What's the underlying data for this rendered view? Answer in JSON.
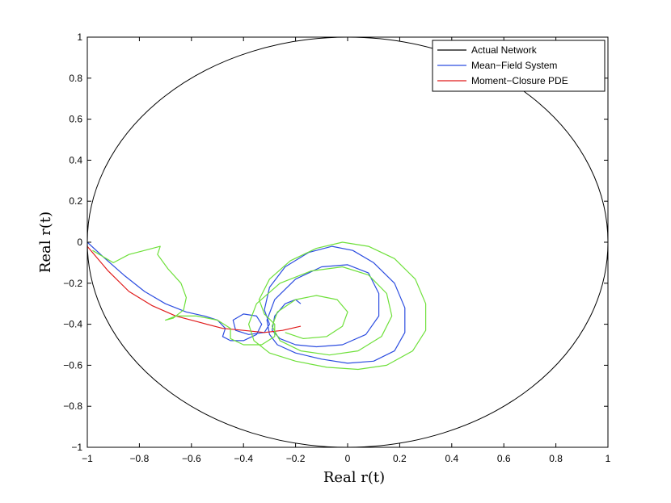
{
  "chart_data": {
    "type": "line",
    "title": "",
    "xlabel": "Real r(t)",
    "ylabel": "Real r(t)",
    "xlim": [
      -1,
      1
    ],
    "ylim": [
      -1,
      1
    ],
    "x_ticks": [
      "−1",
      "−0.8",
      "−0.6",
      "−0.4",
      "−0.2",
      "0",
      "0.2",
      "0.4",
      "0.6",
      "0.8",
      "1"
    ],
    "y_ticks": [
      "−1",
      "−0.8",
      "−0.6",
      "−0.4",
      "−0.2",
      "0",
      "0.2",
      "0.4",
      "0.6",
      "0.8",
      "1"
    ],
    "grid": false,
    "legend_position": "top-right",
    "series": [
      {
        "name": "Actual Network",
        "color": "#000000",
        "shape": "unit-circle"
      },
      {
        "name": "Mean−Field System",
        "color": "#2c4de0",
        "points": [
          [
            -1.0,
            0.0
          ],
          [
            -0.94,
            -0.07
          ],
          [
            -0.86,
            -0.16
          ],
          [
            -0.78,
            -0.24
          ],
          [
            -0.7,
            -0.3
          ],
          [
            -0.62,
            -0.34
          ],
          [
            -0.55,
            -0.36
          ],
          [
            -0.5,
            -0.38
          ],
          [
            -0.47,
            -0.42
          ],
          [
            -0.48,
            -0.46
          ],
          [
            -0.45,
            -0.48
          ],
          [
            -0.4,
            -0.48
          ],
          [
            -0.35,
            -0.45
          ],
          [
            -0.33,
            -0.4
          ],
          [
            -0.35,
            -0.36
          ],
          [
            -0.4,
            -0.35
          ],
          [
            -0.44,
            -0.38
          ],
          [
            -0.43,
            -0.43
          ],
          [
            -0.38,
            -0.45
          ],
          [
            -0.32,
            -0.44
          ],
          [
            -0.3,
            -0.4
          ],
          [
            -0.32,
            -0.33
          ],
          [
            -0.3,
            -0.22
          ],
          [
            -0.24,
            -0.12
          ],
          [
            -0.15,
            -0.05
          ],
          [
            -0.06,
            -0.02
          ],
          [
            0.02,
            -0.04
          ],
          [
            0.1,
            -0.1
          ],
          [
            0.18,
            -0.2
          ],
          [
            0.22,
            -0.32
          ],
          [
            0.22,
            -0.44
          ],
          [
            0.18,
            -0.53
          ],
          [
            0.1,
            -0.58
          ],
          [
            0.0,
            -0.59
          ],
          [
            -0.1,
            -0.57
          ],
          [
            -0.2,
            -0.54
          ],
          [
            -0.27,
            -0.5
          ],
          [
            -0.3,
            -0.45
          ],
          [
            -0.31,
            -0.38
          ],
          [
            -0.28,
            -0.28
          ],
          [
            -0.2,
            -0.18
          ],
          [
            -0.1,
            -0.12
          ],
          [
            0.0,
            -0.11
          ],
          [
            0.08,
            -0.15
          ],
          [
            0.12,
            -0.25
          ],
          [
            0.12,
            -0.36
          ],
          [
            0.07,
            -0.45
          ],
          [
            -0.02,
            -0.5
          ],
          [
            -0.12,
            -0.51
          ],
          [
            -0.2,
            -0.5
          ],
          [
            -0.26,
            -0.47
          ],
          [
            -0.29,
            -0.43
          ],
          [
            -0.28,
            -0.36
          ],
          [
            -0.24,
            -0.3
          ],
          [
            -0.2,
            -0.28
          ],
          [
            -0.18,
            -0.3
          ]
        ]
      },
      {
        "name": "Moment−Closure PDE",
        "color": "#e01b1b",
        "points": [
          [
            -1.0,
            -0.02
          ],
          [
            -0.92,
            -0.14
          ],
          [
            -0.84,
            -0.24
          ],
          [
            -0.75,
            -0.31
          ],
          [
            -0.66,
            -0.36
          ],
          [
            -0.57,
            -0.39
          ],
          [
            -0.48,
            -0.42
          ],
          [
            -0.4,
            -0.43
          ],
          [
            -0.32,
            -0.44
          ],
          [
            -0.25,
            -0.43
          ],
          [
            -0.18,
            -0.41
          ]
        ]
      },
      {
        "name": "",
        "color": "#6ee03a",
        "points": [
          [
            -0.98,
            -0.04
          ],
          [
            -0.9,
            -0.1
          ],
          [
            -0.84,
            -0.06
          ],
          [
            -0.78,
            -0.04
          ],
          [
            -0.72,
            -0.02
          ],
          [
            -0.73,
            -0.06
          ],
          [
            -0.69,
            -0.13
          ],
          [
            -0.64,
            -0.2
          ],
          [
            -0.62,
            -0.27
          ],
          [
            -0.63,
            -0.33
          ],
          [
            -0.67,
            -0.37
          ],
          [
            -0.7,
            -0.38
          ],
          [
            -0.66,
            -0.36
          ],
          [
            -0.58,
            -0.36
          ],
          [
            -0.5,
            -0.38
          ],
          [
            -0.45,
            -0.42
          ],
          [
            -0.45,
            -0.47
          ],
          [
            -0.4,
            -0.5
          ],
          [
            -0.33,
            -0.5
          ],
          [
            -0.28,
            -0.46
          ],
          [
            -0.28,
            -0.4
          ],
          [
            -0.32,
            -0.35
          ],
          [
            -0.34,
            -0.28
          ],
          [
            -0.3,
            -0.18
          ],
          [
            -0.22,
            -0.09
          ],
          [
            -0.12,
            -0.03
          ],
          [
            -0.02,
            0.0
          ],
          [
            0.08,
            -0.02
          ],
          [
            0.18,
            -0.08
          ],
          [
            0.26,
            -0.18
          ],
          [
            0.3,
            -0.3
          ],
          [
            0.3,
            -0.43
          ],
          [
            0.25,
            -0.53
          ],
          [
            0.15,
            -0.6
          ],
          [
            0.04,
            -0.62
          ],
          [
            -0.08,
            -0.61
          ],
          [
            -0.2,
            -0.58
          ],
          [
            -0.3,
            -0.54
          ],
          [
            -0.36,
            -0.48
          ],
          [
            -0.38,
            -0.4
          ],
          [
            -0.35,
            -0.3
          ],
          [
            -0.26,
            -0.2
          ],
          [
            -0.14,
            -0.14
          ],
          [
            -0.02,
            -0.12
          ],
          [
            0.08,
            -0.16
          ],
          [
            0.15,
            -0.25
          ],
          [
            0.17,
            -0.36
          ],
          [
            0.13,
            -0.46
          ],
          [
            0.04,
            -0.53
          ],
          [
            -0.07,
            -0.55
          ],
          [
            -0.18,
            -0.53
          ],
          [
            -0.26,
            -0.48
          ],
          [
            -0.29,
            -0.41
          ],
          [
            -0.27,
            -0.34
          ],
          [
            -0.2,
            -0.28
          ],
          [
            -0.12,
            -0.26
          ],
          [
            -0.04,
            -0.28
          ],
          [
            0.0,
            -0.34
          ],
          [
            -0.02,
            -0.41
          ],
          [
            -0.08,
            -0.46
          ],
          [
            -0.17,
            -0.47
          ],
          [
            -0.24,
            -0.44
          ]
        ]
      }
    ]
  }
}
